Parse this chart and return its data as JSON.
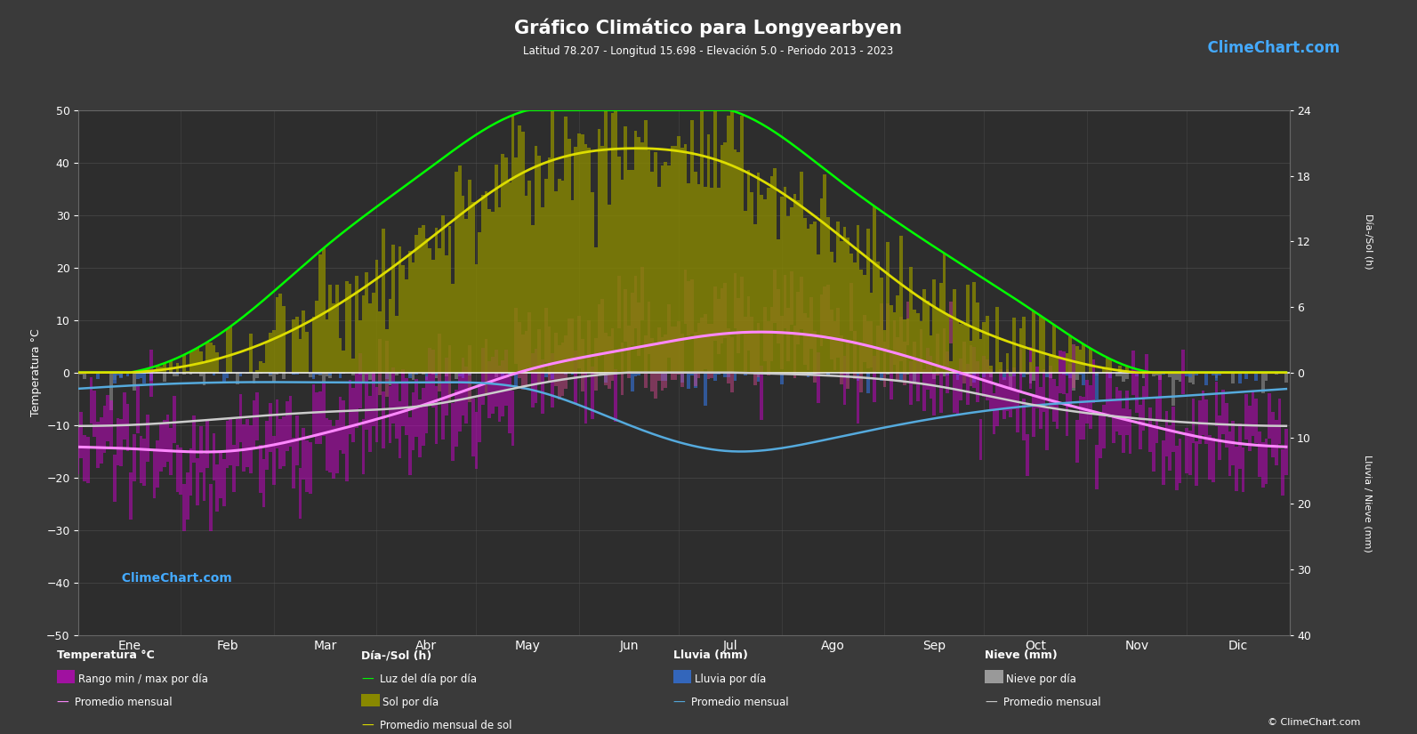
{
  "title": "Gráfico Climático para Longyearbyen",
  "subtitle": "Latitud 78.207 - Longitud 15.698 - Elevación 5.0 - Periodo 2013 - 2023",
  "bg_color": "#3a3a3a",
  "plot_bg_color": "#2d2d2d",
  "months": [
    "Ene",
    "Feb",
    "Mar",
    "Abr",
    "May",
    "Jun",
    "Jul",
    "Ago",
    "Sep",
    "Oct",
    "Nov",
    "Dic"
  ],
  "temp_ylim": [
    -50,
    50
  ],
  "temp_min_monthly": [
    -17.5,
    -18.0,
    -15.0,
    -10.0,
    -3.5,
    1.0,
    4.0,
    3.5,
    -1.0,
    -7.0,
    -12.5,
    -16.0
  ],
  "temp_max_monthly": [
    -11.5,
    -12.0,
    -8.0,
    -2.0,
    4.0,
    8.0,
    11.5,
    10.0,
    4.0,
    -2.0,
    -7.0,
    -10.5
  ],
  "temp_avg_monthly": [
    -14.5,
    -15.0,
    -11.5,
    -6.0,
    0.5,
    4.5,
    7.5,
    6.5,
    1.5,
    -4.5,
    -9.5,
    -13.5
  ],
  "daylight_monthly": [
    0.0,
    4.0,
    11.5,
    18.5,
    24.0,
    24.0,
    24.0,
    18.0,
    11.5,
    5.5,
    0.3,
    0.0
  ],
  "sunshine_monthly": [
    0.0,
    1.5,
    5.5,
    12.0,
    18.5,
    20.5,
    19.0,
    13.0,
    6.0,
    2.0,
    0.0,
    0.0
  ],
  "rain_daily_avg_monthly": [
    0.3,
    0.2,
    0.2,
    0.2,
    0.25,
    0.5,
    0.65,
    0.6,
    0.4,
    0.35,
    0.3,
    0.25
  ],
  "snow_daily_avg_monthly": [
    0.5,
    0.4,
    0.35,
    0.25,
    0.1,
    0.0,
    0.0,
    0.03,
    0.1,
    0.27,
    0.4,
    0.45
  ],
  "rain_avg_monthly": [
    2.0,
    1.5,
    1.5,
    1.5,
    2.5,
    8.0,
    12.0,
    10.0,
    7.0,
    5.0,
    4.0,
    3.0
  ],
  "snow_avg_monthly": [
    8.0,
    7.0,
    6.0,
    5.0,
    2.0,
    0.0,
    0.0,
    0.5,
    2.0,
    5.0,
    7.0,
    8.0
  ],
  "grid_color": "#555555",
  "temp_range_color_pos": "#cc44cc",
  "temp_range_color_neg": "#9900aa",
  "temp_avg_color": "#ff88ff",
  "daylight_color": "#00ff00",
  "sunshine_bar_color": "#888800",
  "sunshine_avg_color": "#dddd00",
  "rain_bar_color": "#3366bb",
  "rain_avg_color": "#55aadd",
  "snow_bar_color": "#999999",
  "snow_avg_color": "#cccccc",
  "zero_line_color": "#ffffff",
  "sun_scale": 2.083,
  "precip_scale": 1.25
}
